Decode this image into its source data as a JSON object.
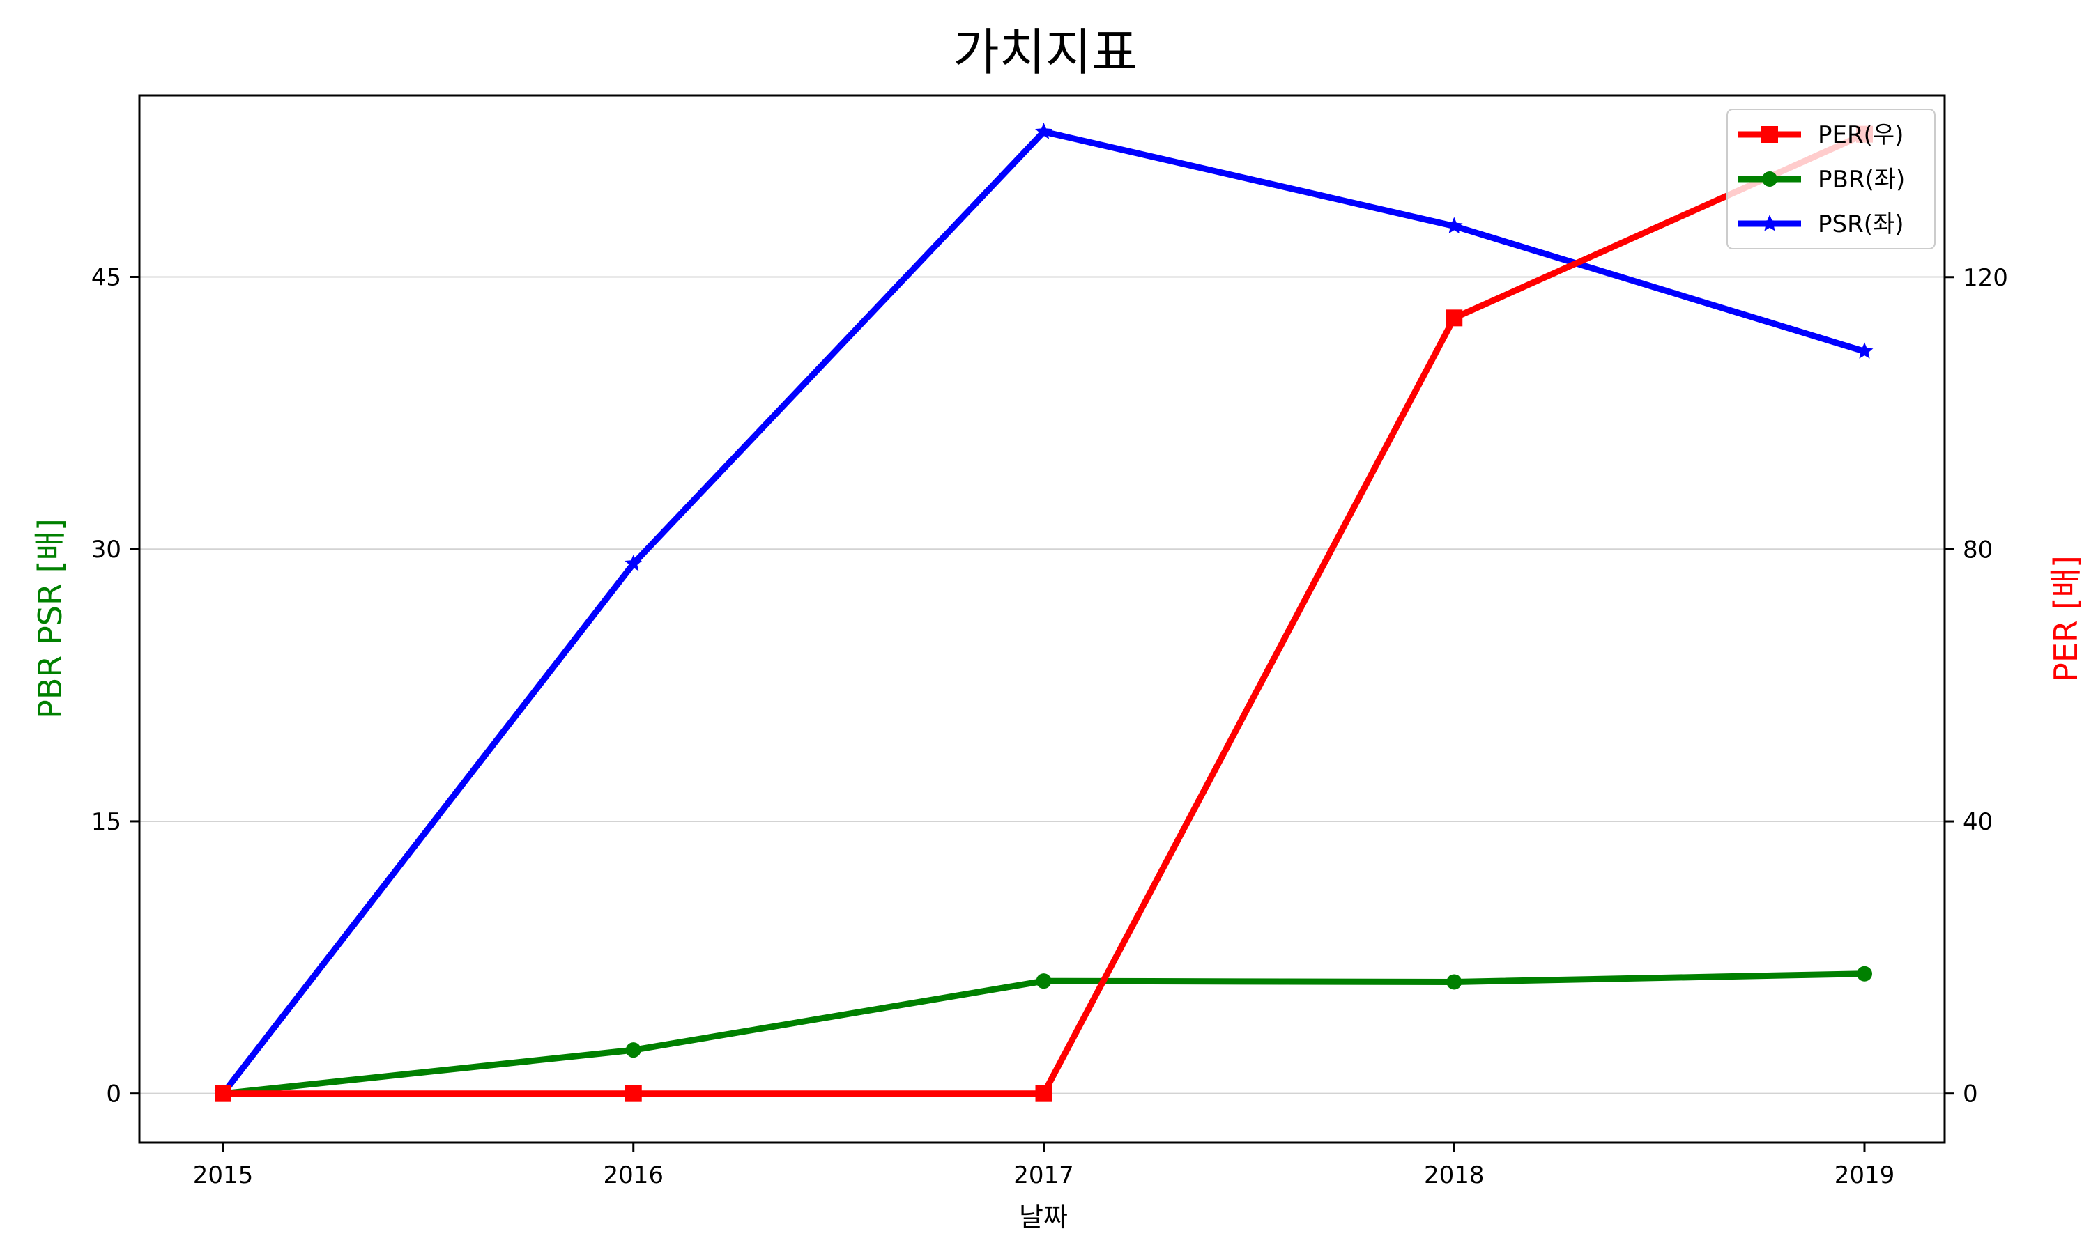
{
  "chart_data": {
    "type": "line",
    "title": "가치지표",
    "xlabel": "날짜",
    "ylabel_left": "PBR PSR [배]",
    "ylabel_right": "PER [배]",
    "categories": [
      "2015",
      "2016",
      "2017",
      "2018",
      "2019"
    ],
    "ylim_left": [
      -2.7,
      55.0
    ],
    "ylim_right": [
      -7.2,
      146.7
    ],
    "yticks_left": [
      "0",
      "15",
      "30",
      "45"
    ],
    "yticks_right": [
      "0",
      "40",
      "80",
      "120"
    ],
    "grid": "horizontal",
    "legend_position": "top-right",
    "series": [
      {
        "name": "PER(우)",
        "axis": "right",
        "color": "#ff0000",
        "marker": "square",
        "values": [
          0,
          0,
          0,
          114,
          141
        ]
      },
      {
        "name": "PBR(좌)",
        "axis": "left",
        "color": "#008000",
        "marker": "circle",
        "values": [
          0,
          2.4,
          6.2,
          6.15,
          6.6
        ]
      },
      {
        "name": "PSR(좌)",
        "axis": "left",
        "color": "#0000ff",
        "marker": "star",
        "values": [
          0,
          29.2,
          53.0,
          47.8,
          40.9
        ]
      }
    ]
  }
}
